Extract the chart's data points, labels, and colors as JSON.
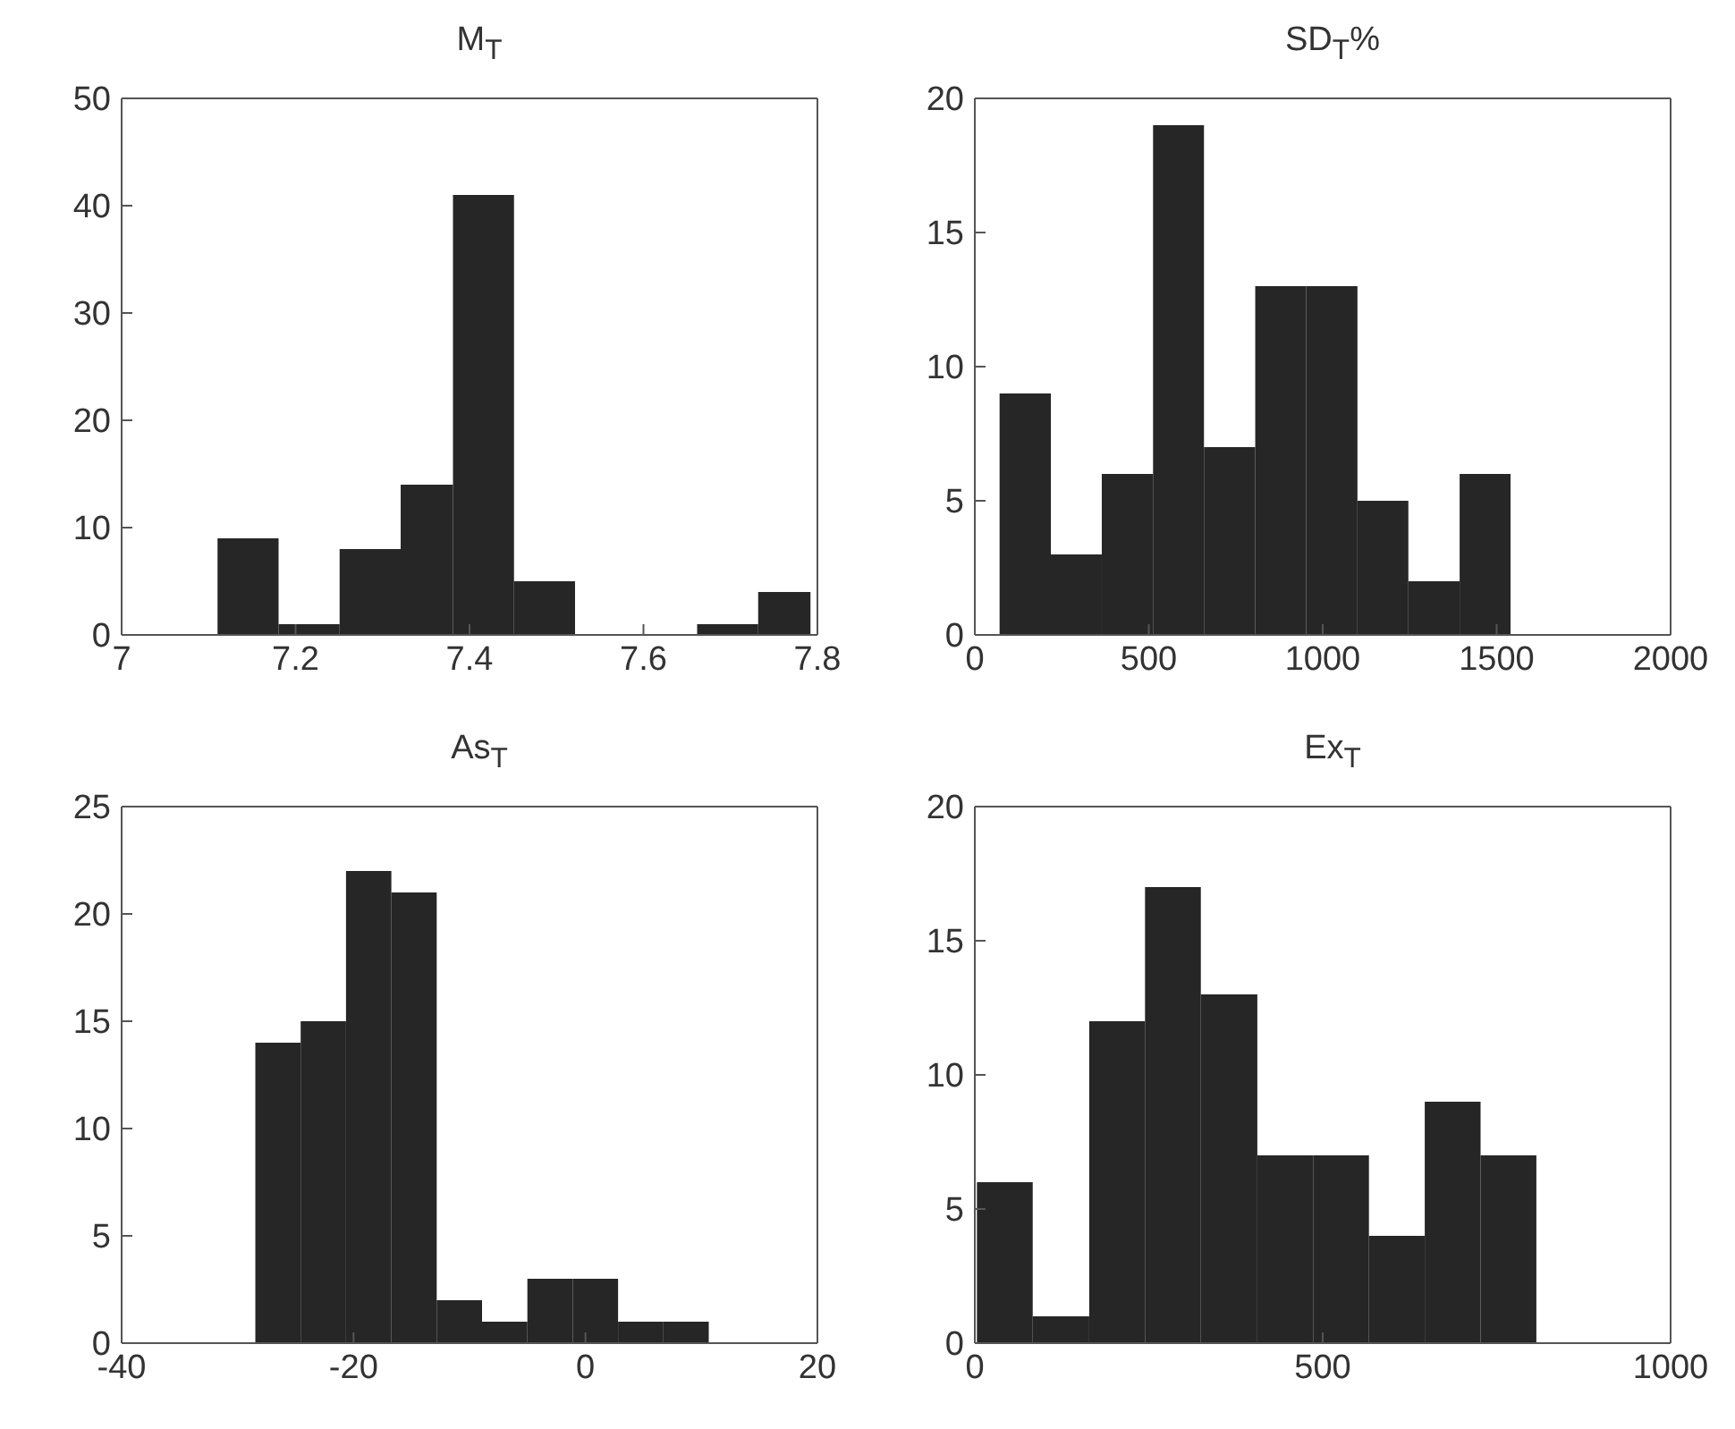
{
  "chart_data": [
    {
      "type": "histogram",
      "title": "M$_{T}$",
      "bins": [
        7.11,
        7.18,
        7.25,
        7.32,
        7.38,
        7.45,
        7.52,
        7.66,
        7.73,
        7.79
      ],
      "values": [
        9,
        1,
        8,
        14,
        41,
        5,
        0,
        1,
        4
      ],
      "color": "#262626",
      "xlim": [
        7,
        7.8
      ],
      "xticks": [
        7,
        7.2,
        7.4,
        7.6,
        7.8
      ],
      "ylim": [
        0,
        50
      ],
      "yticks": [
        0,
        10,
        20,
        30,
        40,
        50
      ],
      "grid": false
    },
    {
      "type": "histogram",
      "title": "SD$_{T}$%",
      "bins": [
        71,
        218,
        364,
        511,
        657,
        804,
        950,
        1097,
        1243,
        1390,
        1536
      ],
      "values": [
        9,
        3,
        6,
        19,
        7,
        13,
        13,
        5,
        2,
        6
      ],
      "color": "#262626",
      "xlim": [
        0,
        2000
      ],
      "xticks": [
        0,
        500,
        1000,
        1500,
        2000
      ],
      "ylim": [
        0,
        20
      ],
      "yticks": [
        0,
        5,
        10,
        15,
        20
      ],
      "grid": false
    },
    {
      "type": "histogram",
      "title": "As$_{T}$",
      "bins": [
        -28.5,
        -24.6,
        -20.7,
        -16.8,
        -12.9,
        -9.0,
        -5.1,
        -1.2,
        2.7,
        6.6,
        10.5
      ],
      "values": [
        14,
        15,
        22,
        21,
        2,
        1,
        3,
        3,
        1,
        1
      ],
      "color": "#262626",
      "xlim": [
        -40,
        20
      ],
      "xticks": [
        -40,
        -20,
        0,
        20
      ],
      "ylim": [
        0,
        25
      ],
      "yticks": [
        0,
        5,
        10,
        15,
        20,
        25
      ],
      "grid": false
    },
    {
      "type": "histogram",
      "title": "Ex$_{T}$",
      "bins": [
        3,
        83,
        164,
        244,
        324,
        405,
        485,
        565,
        645,
        725,
        805
      ],
      "values": [
        6,
        1,
        12,
        17,
        13,
        7,
        7,
        4,
        9,
        7
      ],
      "color": "#262626",
      "xlim": [
        0,
        1000
      ],
      "xticks": [
        0,
        500,
        1000
      ],
      "ylim": [
        0,
        20
      ],
      "yticks": [
        0,
        5,
        10,
        15,
        20
      ],
      "grid": false
    }
  ]
}
